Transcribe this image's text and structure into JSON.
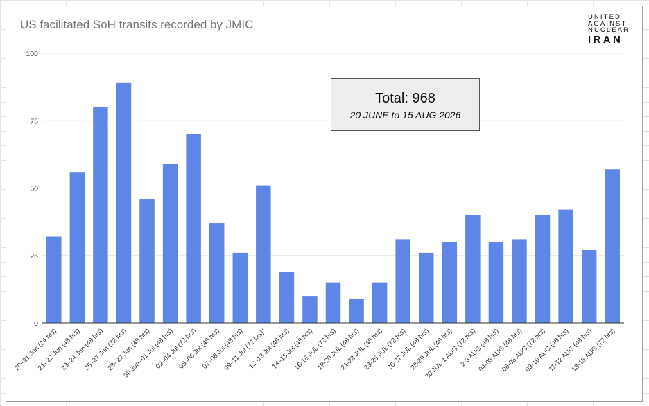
{
  "logo": {
    "line1": "UNITED",
    "line2": "AGAINST",
    "line3": "NUCLEAR",
    "line4": "IRAN"
  },
  "total_box": {
    "main": "Total: 968",
    "sub": "20 JUNE to 15 AUG 2026"
  },
  "colors": {
    "bar": "#5e86e6",
    "grid": "#e6e6e6",
    "axis": "#333333",
    "title": "#757575"
  },
  "chart_data": {
    "type": "bar",
    "title": "US facilitated SoH transits recorded by JMIC",
    "xlabel": "",
    "ylabel": "",
    "ylim": [
      0,
      100
    ],
    "yticks": [
      0,
      25,
      50,
      75,
      100
    ],
    "grid": true,
    "legend": "none",
    "categories": [
      "20–21 Jun (24 hrs)",
      "21–22 Jun (48 hrs)",
      "23–24 Jun (48 hrs)",
      "25–27 Jun (72 hrs)",
      "28–29 Jun (48 hrs)",
      "30 Jun–01 Jul (48 hrs)",
      "02–04 Jul (72 hrs)",
      "05–06 Jul (48 hrs)",
      "07–08 Jul (48 hrs)",
      "09–11 Jul (72 hrs)*",
      "12–13 Jul (48 hrs)",
      "14–15 Jul (48 hrs)",
      "16-18 JUL (72 hrs)",
      "19-20 JUL (48 hrs)",
      "21-22 JUL (48 hrs)",
      "23-25 JUL (72 hrs)",
      "26-27 JUL (48 hrs)",
      "28-29 JUL (48 hrs)",
      "30 JUL-1 AUG (72 hrs)",
      "2-3 AUG (48 hrs)",
      "04-05 AUG (48 hrs)",
      "06-08 AUG (72 hrs)",
      "09-10 AUG (48 hrs)",
      "11-12 AUG (48 hrs)",
      "13-15 AUG (72 hrs)"
    ],
    "values": [
      32,
      56,
      80,
      89,
      46,
      59,
      70,
      37,
      26,
      51,
      19,
      10,
      15,
      9,
      15,
      31,
      26,
      30,
      40,
      30,
      31,
      40,
      42,
      27,
      57
    ]
  }
}
